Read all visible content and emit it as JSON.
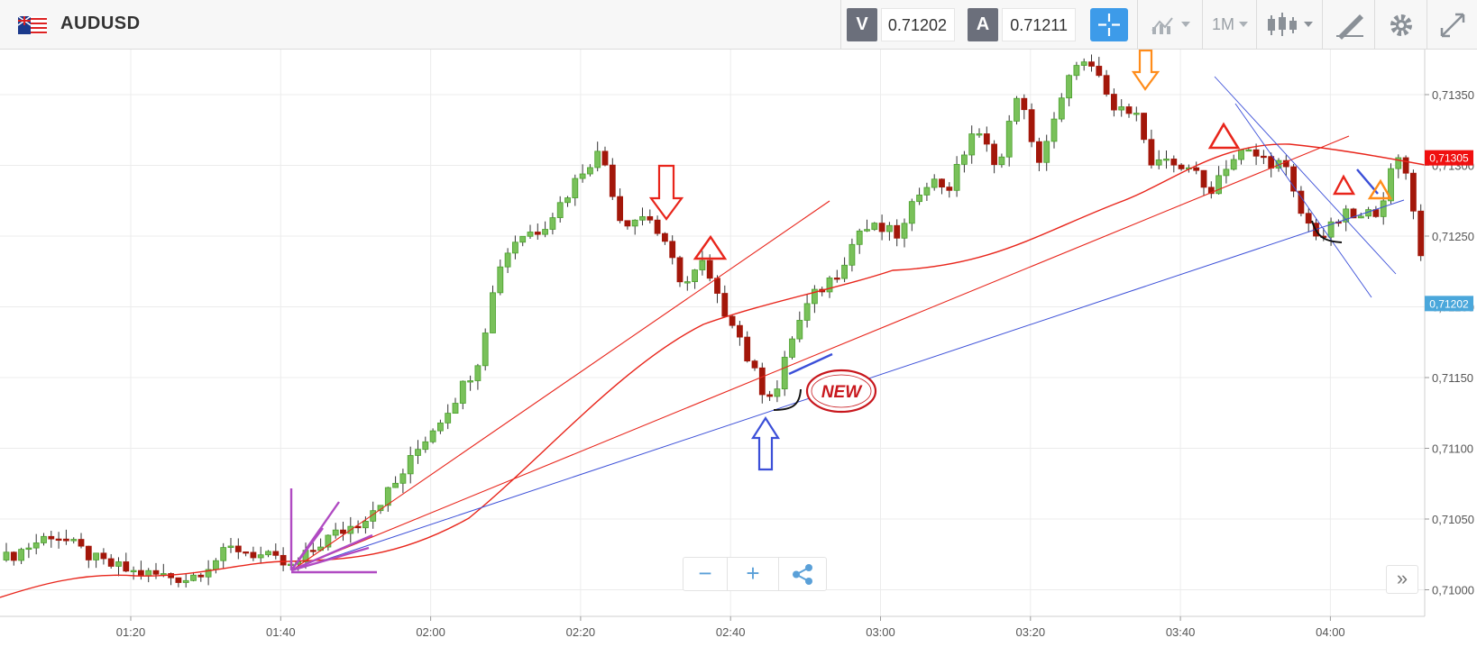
{
  "header": {
    "symbol": "AUDUSD",
    "flag_icon": "australia-flag-icon",
    "sell_label": "V",
    "sell_price": "0.71202",
    "buy_label": "A",
    "buy_price": "0.71211",
    "timeframe": "1M",
    "tools": [
      "crosshair-icon",
      "chart-type-icon",
      "timeframe-dropdown",
      "candles-icon",
      "drawing-icon",
      "gear-icon",
      "fullscreen-icon"
    ]
  },
  "footer": {
    "zoom_out_label": "−",
    "zoom_in_label": "+",
    "share_icon": "share-icon",
    "scroll_right_label": "»"
  },
  "colors": {
    "bull": "#4aa02c",
    "bull_body": "#79c15a",
    "bear": "#a3170a",
    "ma_line": "#e8251b",
    "blue_line": "#3b4fd8",
    "current_price_bg": "#4aa7db",
    "last_tag_bg": "#f01010"
  },
  "chart_data": {
    "type": "candlestick",
    "x_ticks": [
      "01:20",
      "01:40",
      "02:00",
      "02:20",
      "02:40",
      "03:00",
      "03:20",
      "03:40",
      "04:00"
    ],
    "y_ticks": [
      "0,71350",
      "0,71300",
      "0,71250",
      "0,71200",
      "0,71150",
      "0,71100",
      "0,71050",
      "0,71000"
    ],
    "y_range": [
      0.70985,
      0.71385
    ],
    "grid": true,
    "current_price_label": "0,71202",
    "current_price": 0.71202,
    "last_tag_label": "0,71305",
    "last_tag_price": 0.71305,
    "annotation_badge": "NEW",
    "moving_average_line": true,
    "annotations": [
      "arrow-down red",
      "triangle red",
      "arrow-up blue",
      "arrow-down orange",
      "triangle red",
      "triangle red",
      "triangle orange",
      "fan lines purple",
      "trend lines red",
      "trend line blue",
      "channel lines blue"
    ]
  }
}
